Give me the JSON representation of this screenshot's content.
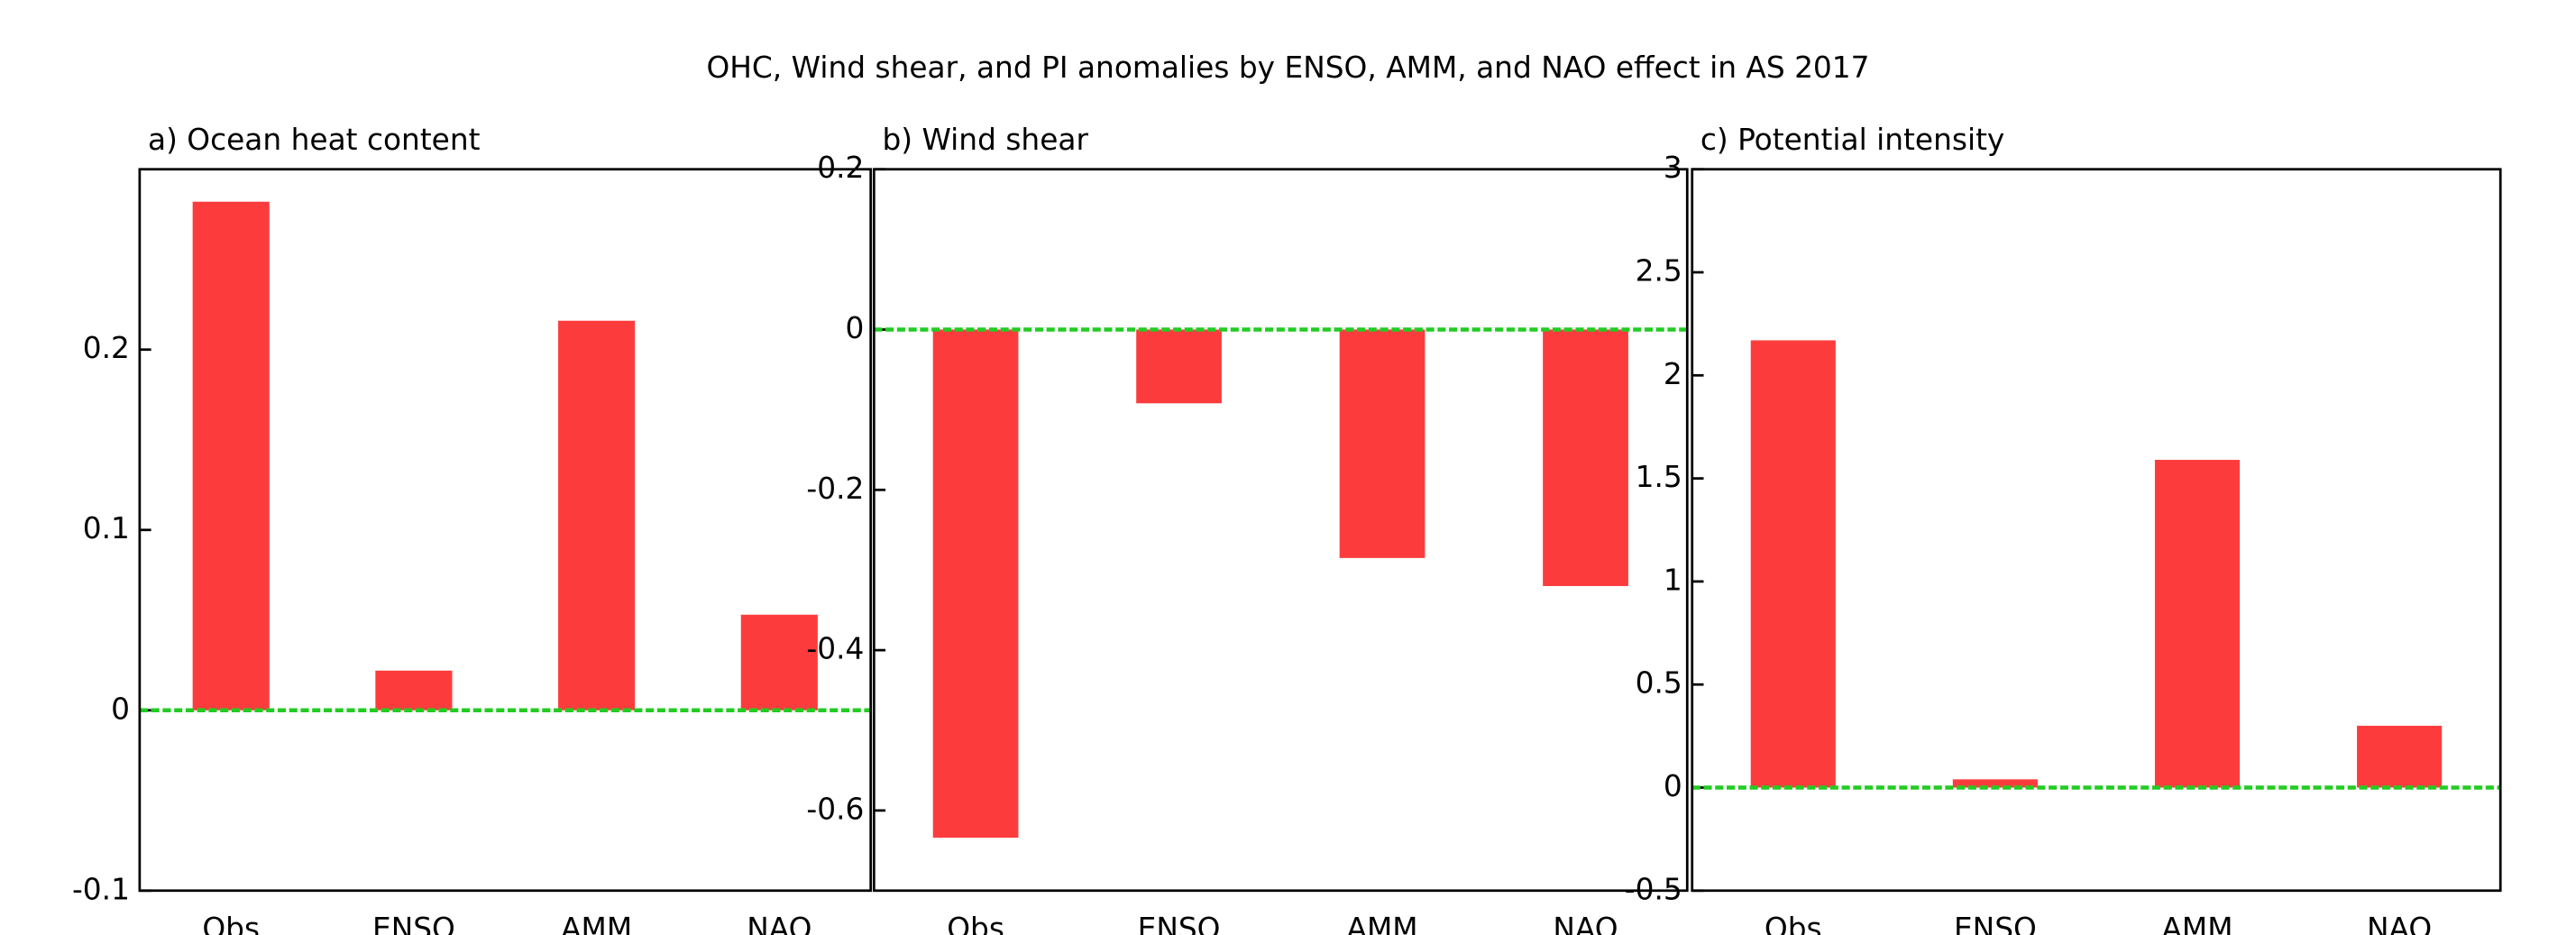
{
  "title": "OHC, Wind shear, and PI anomalies by ENSO, AMM, and NAO effect in AS 2017",
  "chart_data": [
    {
      "type": "bar",
      "title": "a) Ocean heat content",
      "categories": [
        "Obs",
        "ENSO",
        "AMM",
        "NAO"
      ],
      "values": [
        0.282,
        0.022,
        0.216,
        0.053
      ],
      "color": "#fc3c3c",
      "ylim": [
        -0.1,
        0.3
      ],
      "yticks": [
        -0.1,
        0,
        0.1,
        0.2
      ]
    },
    {
      "type": "bar",
      "title": "b) Wind shear",
      "categories": [
        "Obs",
        "ENSO",
        "AMM",
        "NAO"
      ],
      "values": [
        -0.634,
        -0.092,
        -0.285,
        -0.32
      ],
      "color": "#fc3c3c",
      "ylim": [
        -0.7,
        0.2
      ],
      "yticks": [
        -0.6,
        -0.4,
        -0.2,
        0,
        0.2
      ]
    },
    {
      "type": "bar",
      "title": "c) Potential intensity",
      "categories": [
        "Obs",
        "ENSO",
        "AMM",
        "NAO"
      ],
      "values": [
        2.17,
        0.04,
        1.59,
        0.3
      ],
      "color": "#fc3c3c",
      "ylim": [
        -0.5,
        3
      ],
      "yticks": [
        -0.5,
        0,
        0.5,
        1,
        1.5,
        2,
        2.5,
        3
      ]
    }
  ]
}
